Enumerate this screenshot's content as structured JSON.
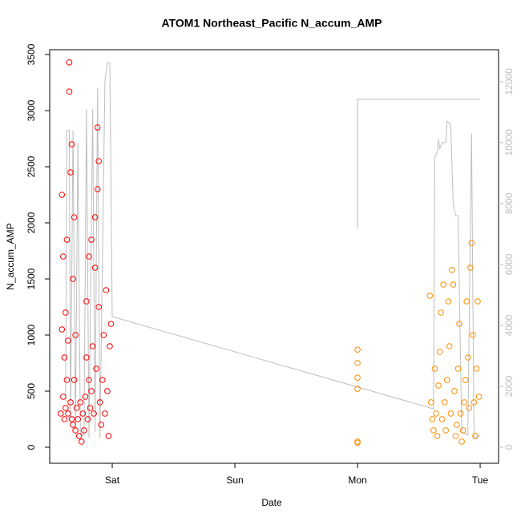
{
  "chart_data": {
    "type": "scatter",
    "title": "ATOM1 Northeast_Pacific N_accum_AMP",
    "xlabel": "Date",
    "ylabel": "N_accum_AMP",
    "xlim": [
      -0.51,
      3.15
    ],
    "xticks": [
      {
        "value": 0,
        "label": "Sat"
      },
      {
        "value": 1,
        "label": "Sun"
      },
      {
        "value": 2,
        "label": "Mon"
      },
      {
        "value": 3,
        "label": "Tue"
      }
    ],
    "ylim": [
      -143,
      3543
    ],
    "yticks": [
      0,
      500,
      1000,
      1500,
      2000,
      2500,
      3000,
      3500
    ],
    "y2lim": [
      -526,
      13050
    ],
    "y2ticks": [
      0,
      2000,
      4000,
      6000,
      8000,
      10000,
      12000
    ],
    "y2color": "#bebebe",
    "series": [
      {
        "color": "#ff0000",
        "mode": "points",
        "x": [
          -0.42,
          -0.41,
          -0.41,
          -0.4,
          -0.4,
          -0.39,
          -0.39,
          -0.38,
          -0.38,
          -0.37,
          -0.37,
          -0.36,
          -0.36,
          -0.35,
          -0.35,
          -0.34,
          -0.34,
          -0.33,
          -0.33,
          -0.32,
          -0.32,
          -0.31,
          -0.31,
          -0.3,
          -0.3,
          -0.29,
          -0.28,
          -0.27,
          -0.26,
          -0.25,
          -0.24,
          -0.23,
          -0.22,
          -0.21,
          -0.21,
          -0.2,
          -0.19,
          -0.19,
          -0.18,
          -0.17,
          -0.17,
          -0.16,
          -0.15,
          -0.14,
          -0.14,
          -0.13,
          -0.12,
          -0.12,
          -0.11,
          -0.11,
          -0.1,
          -0.09,
          -0.08,
          -0.07,
          -0.06,
          -0.05,
          -0.04,
          -0.03,
          -0.02,
          -0.01
        ],
        "values": [
          300,
          1050,
          2250,
          450,
          1700,
          250,
          800,
          1200,
          350,
          600,
          1850,
          300,
          950,
          3430,
          3170,
          2450,
          400,
          2700,
          250,
          1500,
          200,
          2050,
          600,
          1000,
          150,
          350,
          250,
          100,
          400,
          50,
          300,
          150,
          450,
          800,
          1300,
          250,
          600,
          1700,
          350,
          1850,
          500,
          900,
          300,
          1600,
          2050,
          700,
          2300,
          2850,
          2550,
          1250,
          400,
          200,
          600,
          1000,
          300,
          1400,
          500,
          100,
          900,
          1100
        ]
      },
      {
        "color": "#ff8c00",
        "mode": "points",
        "x": [
          2.0,
          2.0,
          2.0,
          2.0,
          2.0,
          2.0,
          2.59,
          2.6,
          2.61,
          2.62,
          2.63,
          2.64,
          2.65,
          2.66,
          2.67,
          2.68,
          2.69,
          2.7,
          2.71,
          2.72,
          2.73,
          2.74,
          2.75,
          2.76,
          2.77,
          2.78,
          2.79,
          2.8,
          2.81,
          2.82,
          2.83,
          2.84,
          2.85,
          2.86,
          2.87,
          2.88,
          2.89,
          2.9,
          2.91,
          2.92,
          2.93,
          2.94,
          2.95,
          2.96,
          2.97,
          2.98,
          2.99
        ],
        "values": [
          40,
          520,
          620,
          750,
          870,
          50,
          1350,
          400,
          250,
          150,
          700,
          300,
          100,
          550,
          850,
          1200,
          250,
          1450,
          400,
          150,
          600,
          1300,
          900,
          300,
          1580,
          1450,
          500,
          100,
          200,
          700,
          1100,
          300,
          50,
          150,
          400,
          600,
          1300,
          800,
          350,
          1600,
          1820,
          1000,
          400,
          100,
          700,
          1300,
          450
        ]
      },
      {
        "color": "#bebebe",
        "mode": "line",
        "axis": "y2",
        "x": [
          -0.38,
          -0.37,
          -0.35,
          -0.34,
          -0.32,
          -0.3,
          -0.28,
          -0.26,
          -0.23,
          -0.21,
          -0.19,
          -0.16,
          -0.14,
          -0.12,
          -0.1,
          -0.06,
          -0.04,
          -0.02,
          0.0,
          2.62,
          2.63,
          2.65,
          2.66,
          2.67,
          2.69,
          2.72,
          2.73,
          2.76,
          2.78,
          2.8,
          2.82,
          2.85,
          2.9,
          2.93,
          2.95,
          3.0,
          null,
          2.0,
          2.0,
          3.0
        ],
        "values": [
          1500,
          10400,
          10400,
          800,
          10400,
          600,
          10000,
          400,
          400,
          11100,
          300,
          11100,
          500,
          11800,
          300,
          12000,
          12630,
          12630,
          4290,
          1260,
          9500,
          9700,
          10100,
          9800,
          10000,
          10000,
          10700,
          10600,
          8000,
          7600,
          7600,
          500,
          400,
          10300,
          300,
          400,
          null,
          7180,
          11420,
          11420
        ]
      }
    ]
  }
}
